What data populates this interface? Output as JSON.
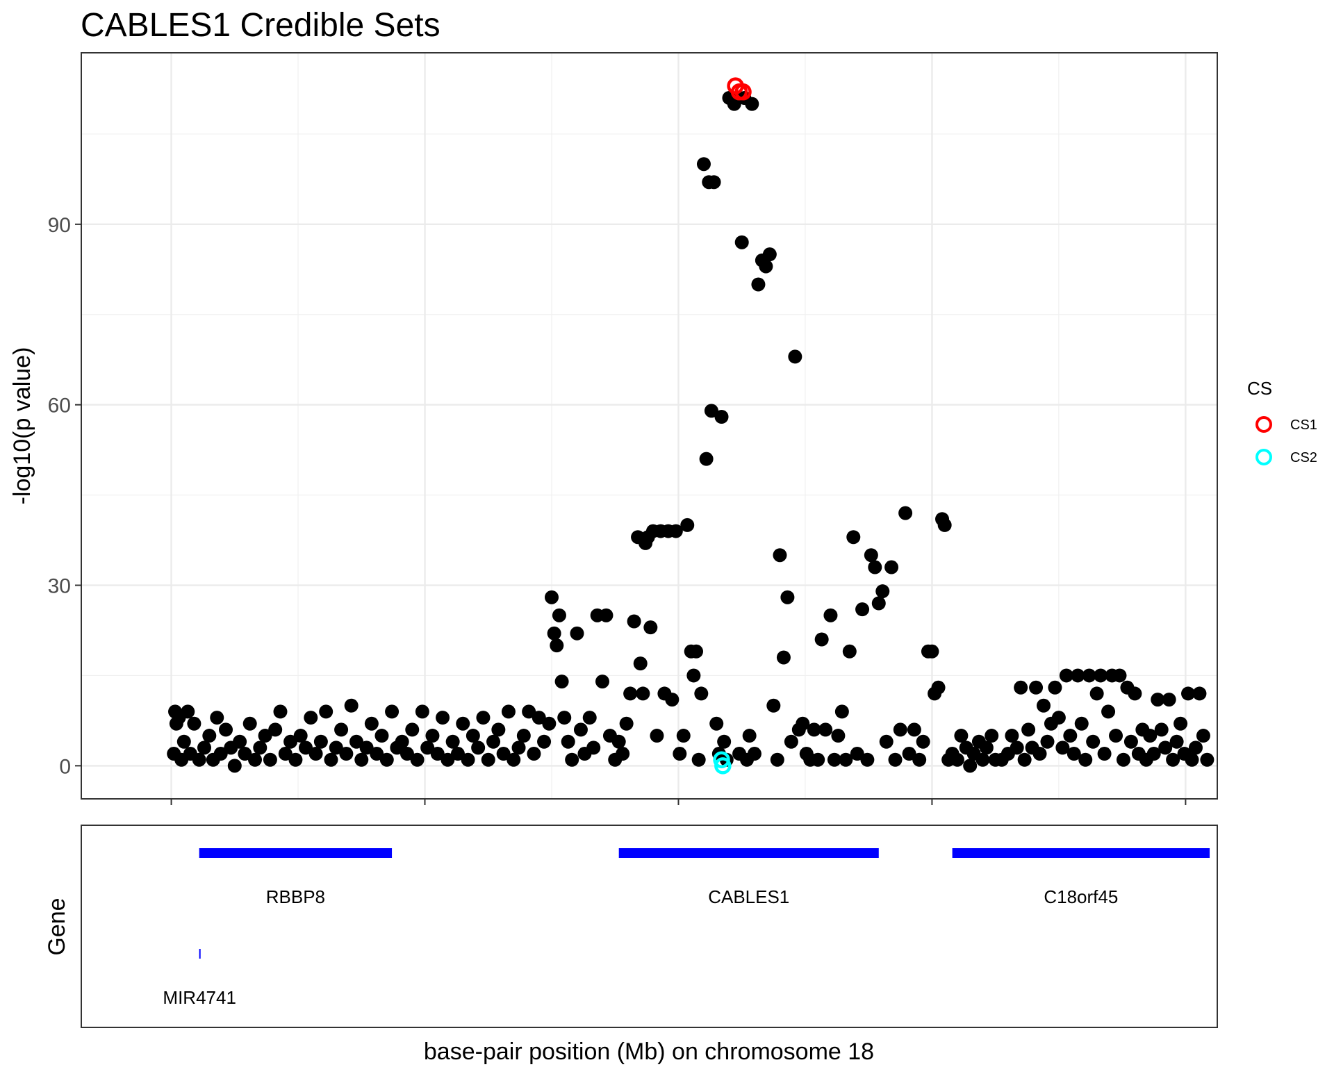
{
  "chart_data": [
    {
      "type": "scatter",
      "title": "CABLES1 Credible Sets",
      "ylabel": "-log10(p value)",
      "xlabel": "base-pair position (Mb) on chromosome 18",
      "ylim": [
        -5.5,
        118.5
      ],
      "yticks": [
        0,
        30,
        60,
        90
      ],
      "grid": true,
      "legend": {
        "title": "CS",
        "placement": "right",
        "entries": [
          {
            "name": "CS1",
            "color": "#ff0000"
          },
          {
            "name": "CS2",
            "color": "#00ffff"
          }
        ]
      },
      "colors": {
        "point": "#000000",
        "CS1": "#ff0000",
        "CS2": "#00ffff",
        "gene": "#0000ff"
      },
      "points": [
        [
          0.2,
          2
        ],
        [
          0.3,
          9
        ],
        [
          0.4,
          7
        ],
        [
          0.6,
          8
        ],
        [
          0.8,
          1
        ],
        [
          1.0,
          4
        ],
        [
          1.3,
          9
        ],
        [
          1.5,
          2
        ],
        [
          1.8,
          7
        ],
        [
          2.2,
          1
        ],
        [
          2.6,
          3
        ],
        [
          3.0,
          5
        ],
        [
          3.3,
          1
        ],
        [
          3.6,
          8
        ],
        [
          3.9,
          2
        ],
        [
          4.3,
          6
        ],
        [
          4.7,
          3
        ],
        [
          5.0,
          0
        ],
        [
          5.4,
          4
        ],
        [
          5.8,
          2
        ],
        [
          6.2,
          7
        ],
        [
          6.6,
          1
        ],
        [
          7.0,
          3
        ],
        [
          7.4,
          5
        ],
        [
          7.8,
          1
        ],
        [
          8.2,
          6
        ],
        [
          8.6,
          9
        ],
        [
          9.0,
          2
        ],
        [
          9.4,
          4
        ],
        [
          9.8,
          1
        ],
        [
          10.2,
          5
        ],
        [
          10.6,
          3
        ],
        [
          11.0,
          8
        ],
        [
          11.4,
          2
        ],
        [
          11.8,
          4
        ],
        [
          12.2,
          9
        ],
        [
          12.6,
          1
        ],
        [
          13.0,
          3
        ],
        [
          13.4,
          6
        ],
        [
          13.8,
          2
        ],
        [
          14.2,
          10
        ],
        [
          14.6,
          4
        ],
        [
          15.0,
          1
        ],
        [
          15.4,
          3
        ],
        [
          15.8,
          7
        ],
        [
          16.2,
          2
        ],
        [
          16.6,
          5
        ],
        [
          17.0,
          1
        ],
        [
          17.4,
          9
        ],
        [
          17.8,
          3
        ],
        [
          18.2,
          4
        ],
        [
          18.6,
          2
        ],
        [
          19.0,
          6
        ],
        [
          19.4,
          1
        ],
        [
          19.8,
          9
        ],
        [
          20.2,
          3
        ],
        [
          20.6,
          5
        ],
        [
          21.0,
          2
        ],
        [
          21.4,
          8
        ],
        [
          21.8,
          1
        ],
        [
          22.2,
          4
        ],
        [
          22.6,
          2
        ],
        [
          23.0,
          7
        ],
        [
          23.4,
          1
        ],
        [
          23.8,
          5
        ],
        [
          24.2,
          3
        ],
        [
          24.6,
          8
        ],
        [
          25.0,
          1
        ],
        [
          25.4,
          4
        ],
        [
          25.8,
          6
        ],
        [
          26.2,
          2
        ],
        [
          26.6,
          9
        ],
        [
          27.0,
          1
        ],
        [
          27.4,
          3
        ],
        [
          27.8,
          5
        ],
        [
          28.2,
          9
        ],
        [
          28.6,
          2
        ],
        [
          29.0,
          8
        ],
        [
          29.4,
          4
        ],
        [
          29.8,
          7
        ],
        [
          30.0,
          28
        ],
        [
          30.2,
          22
        ],
        [
          30.4,
          20
        ],
        [
          30.6,
          25
        ],
        [
          30.8,
          14
        ],
        [
          31.0,
          8
        ],
        [
          31.3,
          4
        ],
        [
          31.6,
          1
        ],
        [
          32.0,
          22
        ],
        [
          32.3,
          6
        ],
        [
          32.6,
          2
        ],
        [
          33.0,
          8
        ],
        [
          33.3,
          3
        ],
        [
          33.6,
          25
        ],
        [
          34.0,
          14
        ],
        [
          34.3,
          25
        ],
        [
          34.6,
          5
        ],
        [
          35.0,
          1
        ],
        [
          35.3,
          4
        ],
        [
          35.6,
          2
        ],
        [
          35.9,
          7
        ],
        [
          36.2,
          12
        ],
        [
          36.5,
          24
        ],
        [
          36.8,
          38
        ],
        [
          37.0,
          17
        ],
        [
          37.2,
          12
        ],
        [
          37.4,
          37
        ],
        [
          37.6,
          38
        ],
        [
          37.8,
          23
        ],
        [
          38.0,
          39
        ],
        [
          38.3,
          5
        ],
        [
          38.6,
          39
        ],
        [
          38.9,
          12
        ],
        [
          39.2,
          39
        ],
        [
          39.5,
          11
        ],
        [
          39.8,
          39
        ],
        [
          40.1,
          2
        ],
        [
          40.4,
          5
        ],
        [
          40.7,
          40
        ],
        [
          41.0,
          19
        ],
        [
          41.2,
          15
        ],
        [
          41.4,
          19
        ],
        [
          41.6,
          1
        ],
        [
          41.8,
          12
        ],
        [
          42.0,
          100
        ],
        [
          42.2,
          51
        ],
        [
          42.4,
          97
        ],
        [
          42.6,
          59
        ],
        [
          42.8,
          97
        ],
        [
          43.0,
          7
        ],
        [
          43.2,
          2
        ],
        [
          43.4,
          58
        ],
        [
          43.6,
          4
        ],
        [
          43.8,
          1
        ],
        [
          44.0,
          111
        ],
        [
          44.2,
          111
        ],
        [
          44.4,
          110
        ],
        [
          44.6,
          111
        ],
        [
          44.8,
          2
        ],
        [
          45.0,
          87
        ],
        [
          45.2,
          111
        ],
        [
          45.4,
          1
        ],
        [
          45.6,
          5
        ],
        [
          45.8,
          110
        ],
        [
          46.0,
          2
        ],
        [
          46.3,
          80
        ],
        [
          46.6,
          84
        ],
        [
          46.9,
          83
        ],
        [
          47.2,
          85
        ],
        [
          47.5,
          10
        ],
        [
          47.8,
          1
        ],
        [
          48.0,
          35
        ],
        [
          48.3,
          18
        ],
        [
          48.6,
          28
        ],
        [
          48.9,
          4
        ],
        [
          49.2,
          68
        ],
        [
          49.5,
          6
        ],
        [
          49.8,
          7
        ],
        [
          50.1,
          2
        ],
        [
          50.4,
          1
        ],
        [
          50.7,
          6
        ],
        [
          51.0,
          1
        ],
        [
          51.3,
          21
        ],
        [
          51.6,
          6
        ],
        [
          52.0,
          25
        ],
        [
          52.3,
          1
        ],
        [
          52.6,
          5
        ],
        [
          52.9,
          9
        ],
        [
          53.2,
          1
        ],
        [
          53.5,
          19
        ],
        [
          53.8,
          38
        ],
        [
          54.1,
          2
        ],
        [
          54.5,
          26
        ],
        [
          54.9,
          1
        ],
        [
          55.2,
          35
        ],
        [
          55.5,
          33
        ],
        [
          55.8,
          27
        ],
        [
          56.1,
          29
        ],
        [
          56.4,
          4
        ],
        [
          56.8,
          33
        ],
        [
          57.1,
          1
        ],
        [
          57.5,
          6
        ],
        [
          57.9,
          42
        ],
        [
          58.2,
          2
        ],
        [
          58.6,
          6
        ],
        [
          59.0,
          1
        ],
        [
          59.3,
          4
        ],
        [
          59.7,
          19
        ],
        [
          60.0,
          19
        ],
        [
          60.2,
          12
        ],
        [
          60.5,
          13
        ],
        [
          60.8,
          41
        ],
        [
          61.0,
          40
        ],
        [
          61.3,
          1
        ],
        [
          61.6,
          2
        ],
        [
          62.0,
          1
        ],
        [
          62.3,
          5
        ],
        [
          62.7,
          3
        ],
        [
          63.0,
          0
        ],
        [
          63.3,
          2
        ],
        [
          63.7,
          4
        ],
        [
          64.0,
          1
        ],
        [
          64.3,
          3
        ],
        [
          64.7,
          5
        ],
        [
          65.0,
          1
        ],
        [
          65.5,
          1
        ],
        [
          66.0,
          2
        ],
        [
          66.3,
          5
        ],
        [
          66.7,
          3
        ],
        [
          67.0,
          13
        ],
        [
          67.3,
          1
        ],
        [
          67.6,
          6
        ],
        [
          67.9,
          3
        ],
        [
          68.2,
          13
        ],
        [
          68.5,
          2
        ],
        [
          68.8,
          10
        ],
        [
          69.1,
          4
        ],
        [
          69.4,
          7
        ],
        [
          69.7,
          13
        ],
        [
          70.0,
          8
        ],
        [
          70.3,
          3
        ],
        [
          70.6,
          15
        ],
        [
          70.9,
          5
        ],
        [
          71.2,
          2
        ],
        [
          71.5,
          15
        ],
        [
          71.8,
          7
        ],
        [
          72.1,
          1
        ],
        [
          72.4,
          15
        ],
        [
          72.7,
          4
        ],
        [
          73.0,
          12
        ],
        [
          73.3,
          15
        ],
        [
          73.6,
          2
        ],
        [
          73.9,
          9
        ],
        [
          74.2,
          15
        ],
        [
          74.5,
          5
        ],
        [
          74.8,
          15
        ],
        [
          75.1,
          1
        ],
        [
          75.4,
          13
        ],
        [
          75.7,
          4
        ],
        [
          76.0,
          12
        ],
        [
          76.3,
          2
        ],
        [
          76.6,
          6
        ],
        [
          76.9,
          1
        ],
        [
          77.2,
          5
        ],
        [
          77.5,
          2
        ],
        [
          77.8,
          11
        ],
        [
          78.1,
          6
        ],
        [
          78.4,
          3
        ],
        [
          78.7,
          11
        ],
        [
          79.0,
          1
        ],
        [
          79.3,
          4
        ],
        [
          79.6,
          7
        ],
        [
          79.9,
          2
        ],
        [
          80.2,
          12
        ],
        [
          80.5,
          1
        ],
        [
          80.8,
          3
        ],
        [
          81.1,
          12
        ],
        [
          81.4,
          5
        ],
        [
          81.7,
          1
        ]
      ],
      "cs_points": [
        {
          "set": "CS1",
          "points": [
            [
              44.5,
              113
            ],
            [
              44.8,
              112
            ],
            [
              45.1,
              112
            ]
          ]
        },
        {
          "set": "CS2",
          "points": [
            [
              43.4,
              1
            ],
            [
              43.5,
              0
            ]
          ]
        }
      ]
    },
    {
      "type": "gene-track",
      "ylabel": "Gene",
      "genes": [
        {
          "name": "RBBP8",
          "start": 2.2,
          "end": 17.4,
          "row": 0
        },
        {
          "name": "CABLES1",
          "start": 35.3,
          "end": 55.8,
          "row": 0
        },
        {
          "name": "C18orf45",
          "start": 61.6,
          "end": 81.9,
          "row": 0
        },
        {
          "name": "MIR4741",
          "start": 2.2,
          "end": 2.25,
          "row": 1
        }
      ]
    }
  ]
}
